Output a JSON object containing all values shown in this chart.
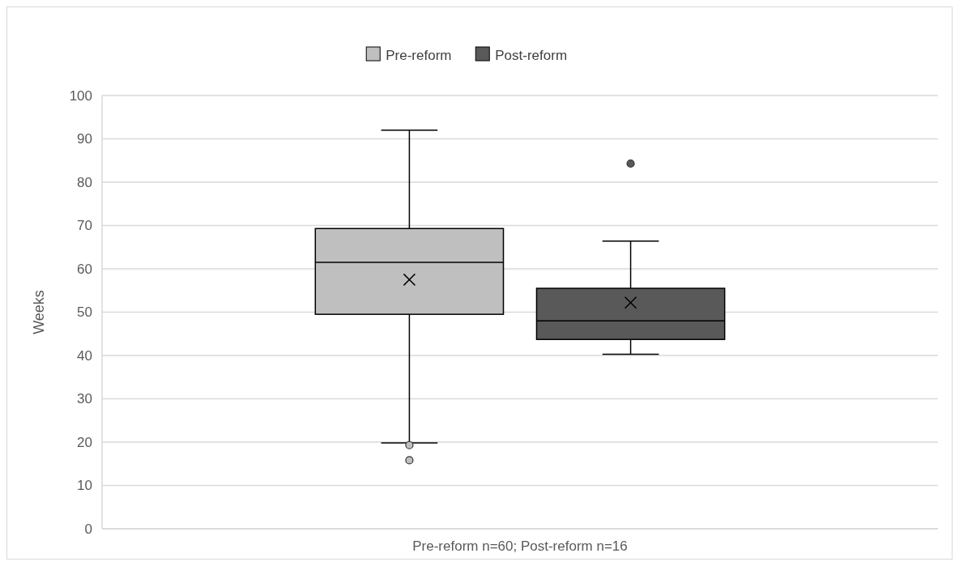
{
  "chart_data": {
    "type": "box",
    "ylabel": "Weeks",
    "categories": [
      "Pre-reform n=60; Post-reform n=16"
    ],
    "ylim": [
      0,
      100
    ],
    "yticks": [
      0,
      10,
      20,
      30,
      40,
      50,
      60,
      70,
      80,
      90,
      100
    ],
    "grid": "y",
    "legend": "top",
    "series": [
      {
        "name": "Pre-reform",
        "color": "#bfbfbf",
        "boxes": [
          {
            "low": 19.8,
            "q1": 49.5,
            "median": 61.5,
            "q3": 69.3,
            "high": 92,
            "mean": 57.5,
            "outliers": [
              19.3,
              15.8
            ]
          }
        ]
      },
      {
        "name": "Post-reform",
        "color": "#595959",
        "boxes": [
          {
            "low": 40.3,
            "q1": 43.7,
            "median": 48,
            "q3": 55.5,
            "high": 66.4,
            "mean": 52.2,
            "outliers": [
              84.3
            ]
          }
        ]
      }
    ]
  }
}
